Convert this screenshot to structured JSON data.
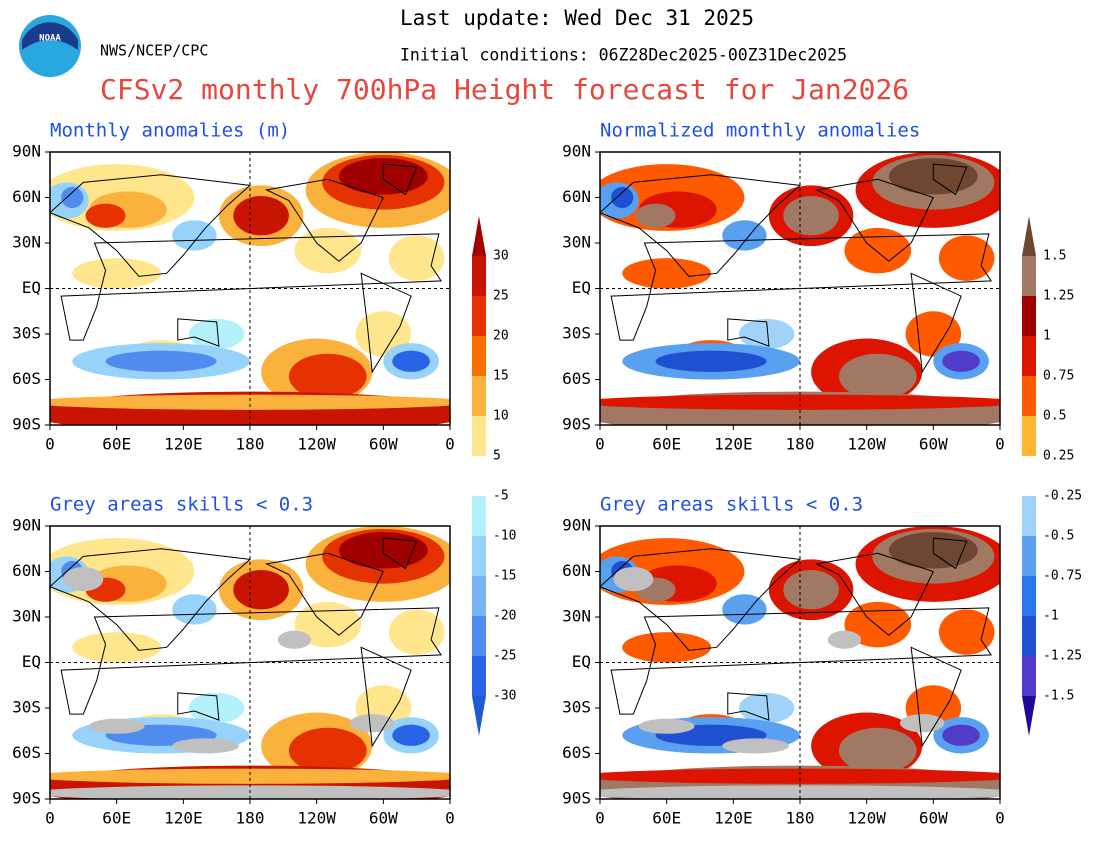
{
  "header": {
    "logo_text": "NOAA",
    "agency": "NWS/NCEP/CPC",
    "last_update": "Last update: Wed Dec 31 2025",
    "initial_conditions": "Initial conditions: 06Z28Dec2025-00Z31Dec2025",
    "title": "CFSv2 monthly 700hPa Height forecast for Jan2026"
  },
  "axes": {
    "lat_labels": [
      "90N",
      "60N",
      "30N",
      "EQ",
      "30S",
      "60S",
      "90S"
    ],
    "lon_labels": [
      "0",
      "60E",
      "120E",
      "180",
      "120W",
      "60W",
      "0"
    ]
  },
  "panels": [
    {
      "title": "Monthly anomalies (m)",
      "colorbar": 0,
      "grey": false
    },
    {
      "title": "Normalized monthly anomalies",
      "colorbar": 1,
      "grey": false
    },
    {
      "title": "Grey areas skills < 0.3",
      "colorbar": 0,
      "grey": true
    },
    {
      "title": "Grey areas skills < 0.3",
      "colorbar": 1,
      "grey": true
    }
  ],
  "colorbars": [
    {
      "levels": [
        30,
        25,
        20,
        15,
        10,
        5,
        -5,
        -10,
        -15,
        -20,
        -25,
        -30
      ],
      "colors": [
        "#a00000",
        "#c81400",
        "#e63200",
        "#fa6e00",
        "#fbb23c",
        "#ffe68c",
        "#ffffff",
        "#b4f0fa",
        "#96d2fa",
        "#78b4f5",
        "#508cf0",
        "#2864e6",
        "#1e5ad2"
      ]
    },
    {
      "levels": [
        1.5,
        1.25,
        1,
        0.75,
        0.5,
        0.25,
        -0.25,
        -0.5,
        -0.75,
        -1,
        -1.25,
        -1.5
      ],
      "colors": [
        "#6e4632",
        "#a07864",
        "#a00000",
        "#dc1400",
        "#ff5a00",
        "#ffb432",
        "#ffffff",
        "#a0d2fa",
        "#5aa0f0",
        "#2878eb",
        "#1e50d2",
        "#503cc8",
        "#1e0a96"
      ]
    }
  ]
}
